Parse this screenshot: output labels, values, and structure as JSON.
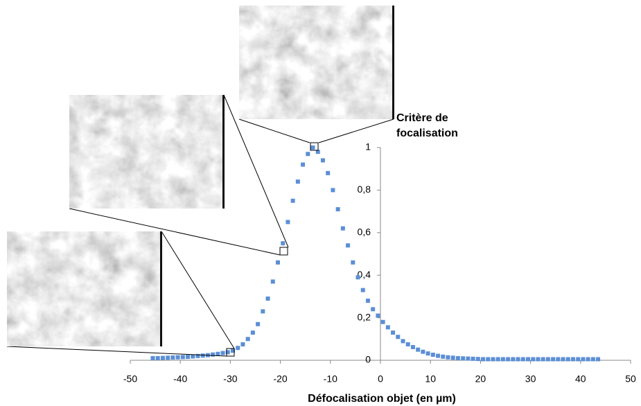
{
  "chart_data": {
    "type": "scatter",
    "x_label": "Défocalisation objet (en µm)",
    "y_label": "Critère de focalisation",
    "xlim": [
      -50,
      50
    ],
    "xticks": [
      -50,
      -40,
      -30,
      -20,
      -10,
      0,
      10,
      20,
      30,
      40,
      50
    ],
    "ylim": [
      0,
      1
    ],
    "yticks": [
      0,
      {
        "value": 0.2,
        "label": "0,2"
      },
      {
        "value": 0.4,
        "label": "0,4"
      },
      {
        "value": 0.6,
        "label": "0,6"
      },
      {
        "value": 0.8,
        "label": "0,8"
      },
      1
    ],
    "series": [
      {
        "color": "#5b8fd6",
        "x": [
          -45.5,
          -44.5,
          -43.5,
          -42.5,
          -41.5,
          -40.5,
          -39.5,
          -38.5,
          -37.5,
          -36.5,
          -35.5,
          -34.5,
          -33.5,
          -32.5,
          -31.5,
          -30.5,
          -29.5,
          -28.5,
          -27.5,
          -26.5,
          -25.5,
          -24.5,
          -23.5,
          -22.5,
          -21.5,
          -20.5,
          -19.5,
          -18.5,
          -17.5,
          -16.5,
          -15.5,
          -14.5,
          -13.5,
          -12.5,
          -11.5,
          -10.5,
          -9.5,
          -8.5,
          -7.5,
          -6.5,
          -5.5,
          -4.5,
          -3.5,
          -2.5,
          -1.5,
          -0.5,
          0.5,
          1.5,
          2.5,
          3.5,
          4.5,
          5.5,
          6.5,
          7.5,
          8.5,
          9.5,
          10.5,
          11.5,
          12.5,
          13.5,
          14.5,
          15.5,
          16.5,
          17.5,
          18.5,
          19.5,
          20.5,
          21.5,
          22.5,
          23.5,
          24.5,
          25.5,
          26.5,
          27.5,
          28.5,
          29.5,
          30.5,
          31.5,
          32.5,
          33.5,
          34.5,
          35.5,
          36.5,
          37.5,
          38.5,
          39.5,
          40.5,
          41.5,
          42.5,
          43.5
        ],
        "values": [
          0.01,
          0.01,
          0.011,
          0.012,
          0.013,
          0.014,
          0.015,
          0.016,
          0.018,
          0.02,
          0.022,
          0.024,
          0.027,
          0.03,
          0.034,
          0.038,
          0.045,
          0.058,
          0.075,
          0.1,
          0.13,
          0.17,
          0.23,
          0.29,
          0.37,
          0.46,
          0.55,
          0.65,
          0.75,
          0.84,
          0.92,
          0.97,
          1,
          0.98,
          0.94,
          0.88,
          0.8,
          0.71,
          0.62,
          0.54,
          0.46,
          0.39,
          0.33,
          0.28,
          0.24,
          0.21,
          0.18,
          0.155,
          0.13,
          0.11,
          0.09,
          0.075,
          0.062,
          0.05,
          0.04,
          0.032,
          0.026,
          0.021,
          0.017,
          0.014,
          0.012,
          0.01,
          0.009,
          0.008,
          0.007,
          0.006,
          0.005,
          0.005,
          0.005,
          0.005,
          0.005,
          0.005,
          0.005,
          0.005,
          0.005,
          0.005,
          0.005,
          0.005,
          0.005,
          0.005,
          0.005,
          0.005,
          0.005,
          0.005,
          0.005,
          0.005,
          0.005,
          0.005,
          0.005,
          0.005
        ]
      }
    ]
  }
}
